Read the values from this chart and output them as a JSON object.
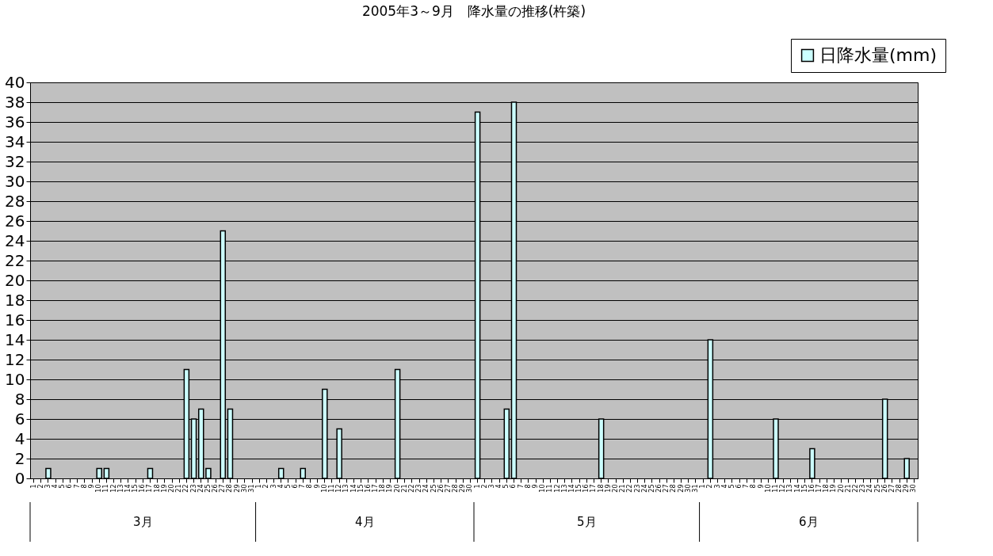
{
  "chart_data": {
    "type": "bar",
    "title": "2005年3～9月　降水量の推移(杵築)",
    "categories": [
      "1",
      "2",
      "3",
      "4",
      "5",
      "6",
      "7",
      "8",
      "9",
      "10",
      "11",
      "12",
      "13",
      "14",
      "15",
      "16",
      "17",
      "18",
      "19",
      "20",
      "21",
      "22",
      "23",
      "24",
      "25",
      "26",
      "27",
      "28",
      "29",
      "30",
      "31",
      "1",
      "2",
      "3",
      "4",
      "5",
      "6",
      "7",
      "8",
      "9",
      "10",
      "11",
      "12",
      "13",
      "14",
      "15",
      "16",
      "17",
      "18",
      "19",
      "20",
      "21",
      "22",
      "23",
      "24",
      "25",
      "26",
      "27",
      "28",
      "29",
      "30",
      "1",
      "2",
      "3",
      "4",
      "5",
      "6",
      "7",
      "8",
      "9",
      "10",
      "11",
      "12",
      "13",
      "14",
      "15",
      "16",
      "17",
      "18",
      "19",
      "20",
      "21",
      "22",
      "23",
      "24",
      "25",
      "26",
      "27",
      "28",
      "29",
      "30",
      "31",
      "1",
      "2",
      "3",
      "4",
      "5",
      "6",
      "7",
      "8",
      "9",
      "10",
      "11",
      "12",
      "13",
      "14",
      "15",
      "16",
      "17",
      "18",
      "19",
      "20",
      "21",
      "22",
      "23",
      "24",
      "25",
      "26",
      "27",
      "28",
      "29",
      "30"
    ],
    "series": [
      {
        "name": "日降水量(mm)",
        "color": "#ccffff",
        "values": [
          0,
          0,
          1,
          0,
          0,
          0,
          0,
          0,
          0,
          1,
          1,
          0,
          0,
          0,
          0,
          0,
          1,
          0,
          0,
          0,
          0,
          11,
          6,
          7,
          1,
          0,
          25,
          7,
          0,
          0,
          0,
          0,
          0,
          0,
          1,
          0,
          0,
          1,
          0,
          0,
          9,
          0,
          5,
          0,
          0,
          0,
          0,
          0,
          0,
          0,
          11,
          0,
          0,
          0,
          0,
          0,
          0,
          0,
          0,
          0,
          0,
          37,
          0,
          0,
          0,
          7,
          38,
          0,
          0,
          0,
          0,
          0,
          0,
          0,
          0,
          0,
          0,
          0,
          6,
          0,
          0,
          0,
          0,
          0,
          0,
          0,
          0,
          0,
          0,
          0,
          0,
          0,
          0,
          14,
          0,
          0,
          0,
          0,
          0,
          0,
          0,
          0,
          6,
          0,
          0,
          0,
          0,
          3,
          0,
          0,
          0,
          0,
          0,
          0,
          0,
          0,
          0,
          8,
          0,
          0,
          2,
          0
        ]
      }
    ],
    "ylim": [
      0,
      40
    ],
    "yticks": [
      0,
      2,
      4,
      6,
      8,
      10,
      12,
      14,
      16,
      18,
      20,
      22,
      24,
      26,
      28,
      30,
      32,
      34,
      36,
      38,
      40
    ],
    "grid": "y",
    "legend": "top right",
    "annotations": [
      "3月",
      "4月",
      "5月",
      "6月"
    ]
  }
}
